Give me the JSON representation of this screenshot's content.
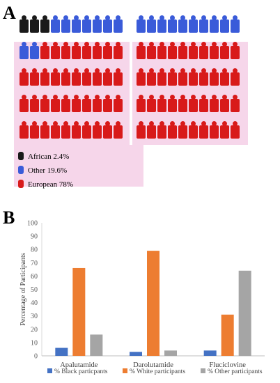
{
  "panel_a": {
    "label": "A",
    "legend": [
      {
        "label": "African 2.4%",
        "color": "#1a1a1a"
      },
      {
        "label": "Other 19.6%",
        "color": "#3a5bd9"
      },
      {
        "label": "European 78%",
        "color": "#d81a1a"
      }
    ]
  },
  "chart_data": {
    "type": "bar",
    "panel_label": "B",
    "title": "",
    "xlabel": "",
    "ylabel": "Percentage of Participants",
    "ylim": [
      0,
      100
    ],
    "yticks": [
      0,
      10,
      20,
      30,
      40,
      50,
      60,
      70,
      80,
      90,
      100
    ],
    "categories": [
      "Apalutamide",
      "Darolutamide",
      "Fluciclovine"
    ],
    "series": [
      {
        "name": "% Black particpants",
        "color": "#4472c4",
        "values": [
          6,
          3,
          4
        ]
      },
      {
        "name": "% White participants",
        "color": "#ed7d31",
        "values": [
          66,
          79,
          31
        ]
      },
      {
        "name": "% Other participants",
        "color": "#a5a5a5",
        "values": [
          16,
          4,
          64
        ]
      }
    ],
    "grid": false,
    "legend_position": "bottom"
  }
}
